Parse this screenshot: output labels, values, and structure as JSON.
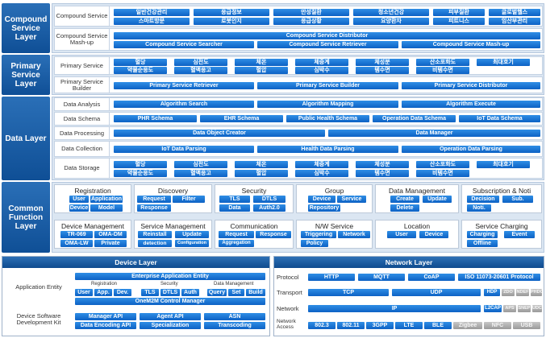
{
  "layers": {
    "compound": "Compound Service Layer",
    "primary": "Primary Service Layer",
    "data": "Data Layer",
    "common": "Common Function Layer"
  },
  "compound": {
    "service_label": "Compound Service",
    "services": [
      "일반건강관리",
      "응급정보",
      "만성질환",
      "청소년건강",
      "피부질환",
      "글로벌헬스",
      "스마트방문",
      "로봇인지",
      "응급상황",
      "요양환자",
      "피트니스",
      "임산부관리"
    ],
    "mashup_label": "Compound Service Mash-up",
    "distributor": "Compound Service Distributor",
    "searcher": "Compound Service Searcher",
    "retriever": "Compound Service Retriever",
    "mashup": "Compound Service Mash-up"
  },
  "primary": {
    "service_label": "Primary Service",
    "services": [
      "혈당",
      "심전도",
      "체온",
      "체중계",
      "체성분",
      "산소포화도",
      "최대호기",
      "약물순응도",
      "혈액응고",
      "혈압",
      "심박수",
      "템수면",
      "비템수면"
    ],
    "builder_label": "Primary Service Builder",
    "retriever": "Primary Service Retriever",
    "builder": "Primary Service Builder",
    "distributor": "Primary Service Distributor"
  },
  "data": {
    "analysis_label": "Data Analysis",
    "analysis": [
      "Algorithm Search",
      "Algorithm Mapping",
      "Algorithm Execute"
    ],
    "schema_label": "Data Schema",
    "schema": [
      "PHR Schema",
      "EHR Schema",
      "Public Health Schema",
      "Operation Data Schema",
      "IoT Data Schema"
    ],
    "processing_label": "Data Processing",
    "processing": [
      "Data Object Creator",
      "Data Manager"
    ],
    "collection_label": "Data Collection",
    "collection": [
      "IoT Data Parsing",
      "Health Data Parsing",
      "Operation Data Parsing"
    ],
    "storage_label": "Data Storage",
    "storage": [
      "혈당",
      "심전도",
      "체온",
      "체중계",
      "체성분",
      "산소포화도",
      "최대호기",
      "약물순응도",
      "혈액응고",
      "혈압",
      "심박수",
      "템수면",
      "비템수면"
    ]
  },
  "common": {
    "cards": [
      {
        "title": "Registration",
        "items": [
          "User",
          "Application",
          "Device",
          "Model"
        ]
      },
      {
        "title": "Discovery",
        "items": [
          "Request",
          "Filter",
          "Response"
        ]
      },
      {
        "title": "Security",
        "items": [
          "TLS",
          "DTLS",
          "Data",
          "Auth2.0"
        ]
      },
      {
        "title": "Group",
        "items": [
          "Device",
          "Service",
          "Repository"
        ]
      },
      {
        "title": "Data Management",
        "items": [
          "Create",
          "Update",
          "Delete"
        ]
      },
      {
        "title": "Subscription & Noti",
        "items": [
          "Decision",
          "Sub.",
          "Noti."
        ]
      },
      {
        "title": "Device Management",
        "items": [
          "TR-069",
          "OMA-DM",
          "OMA-LW",
          "Private"
        ]
      },
      {
        "title": "Service Management",
        "items": [
          "Reinstall",
          "Update",
          "detection",
          "Configuration"
        ]
      },
      {
        "title": "Communication",
        "items": [
          "Request",
          "Response",
          "Aggregation"
        ]
      },
      {
        "title": "N/W Service",
        "items": [
          "Triggering",
          "Network",
          "Policy"
        ]
      },
      {
        "title": "Location",
        "items": [
          "User",
          "Device"
        ]
      },
      {
        "title": "Service Charging",
        "items": [
          "Charging",
          "Event",
          "Offline"
        ]
      }
    ]
  },
  "device": {
    "title": "Device Layer",
    "app_entity": "Application Entity",
    "enterprise": "Enterprise Application Entity",
    "registration": "Registration",
    "reg_items": [
      "User",
      "App.",
      "Dev."
    ],
    "security": "Security",
    "sec_items": [
      "TLS",
      "DTLS",
      "Auth"
    ],
    "datamgmt": "Data Management",
    "dm_items": [
      "Query",
      "Set",
      "Build"
    ],
    "onem2m": "OneM2M Control Manager",
    "sdk": "Device Software Development Kit",
    "sdk_items": [
      "Manager API",
      "Agent API",
      "ASN",
      "Data Encoding API",
      "Specialization",
      "Transcoding"
    ]
  },
  "network": {
    "title": "Network Layer",
    "protocol": "Protocol",
    "protocol_items": [
      "HTTP",
      "MQTT",
      "CoAP",
      "ISO 11073-20601 Protocol"
    ],
    "transport": "Transport",
    "transport_items": [
      "TCP",
      "UDP",
      "HDP",
      "ZDO",
      "NDEF",
      "PHDC"
    ],
    "network": "Network",
    "network_items": [
      "IP",
      "L2CAP",
      "APS",
      "SNEP",
      "UDC"
    ],
    "access": "Network Access",
    "access_items": [
      "802.3",
      "802.11",
      "3GPP",
      "LTE",
      "BLE",
      "Zigbee",
      "NFC",
      "USB"
    ]
  }
}
